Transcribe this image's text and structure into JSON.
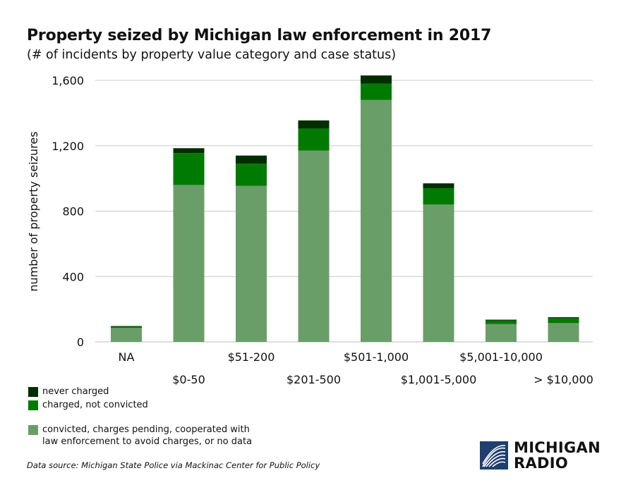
{
  "title": "Property seized by Michigan law enforcement in 2017",
  "subtitle": "(# of incidents by property value category and case status)",
  "chart_data": {
    "type": "bar",
    "stacked": true,
    "categories": [
      "NA",
      "$0-50",
      "$51-200",
      "$201-500",
      "$501-1,000",
      "$1,001-5,000",
      "$5,001-10,000",
      "> $10,000"
    ],
    "series": [
      {
        "name": "convicted, charges pending, cooperated with law enforcement to avoid charges, or no data",
        "color": "#6a9e69",
        "values": [
          85,
          960,
          955,
          1170,
          1480,
          840,
          110,
          115
        ]
      },
      {
        "name": "charged, not convicted",
        "color": "#007a00",
        "values": [
          8,
          195,
          135,
          135,
          100,
          100,
          20,
          30
        ]
      },
      {
        "name": "never charged",
        "color": "#002e00",
        "values": [
          4,
          30,
          50,
          50,
          50,
          30,
          6,
          6
        ]
      }
    ],
    "ylabel": "number of property seizures",
    "xlabel": "",
    "ylim": [
      0,
      1600
    ],
    "yticks": [
      0,
      400,
      800,
      1200,
      1600
    ],
    "ytick_labels": [
      "0",
      "400",
      "800",
      "1,200",
      "1,600"
    ],
    "grid": true,
    "legend_position": "bottom-left"
  },
  "legend": {
    "never_charged": "never charged",
    "charged_not_convicted": "charged, not convicted",
    "convicted": "convicted, charges pending, cooperated with law enforcement to avoid charges, or no data"
  },
  "source": "Data source: Michigan State Police via Mackinac Center for Public Policy",
  "logo": {
    "line1": "MICHIGAN",
    "line2": "RADIO"
  }
}
